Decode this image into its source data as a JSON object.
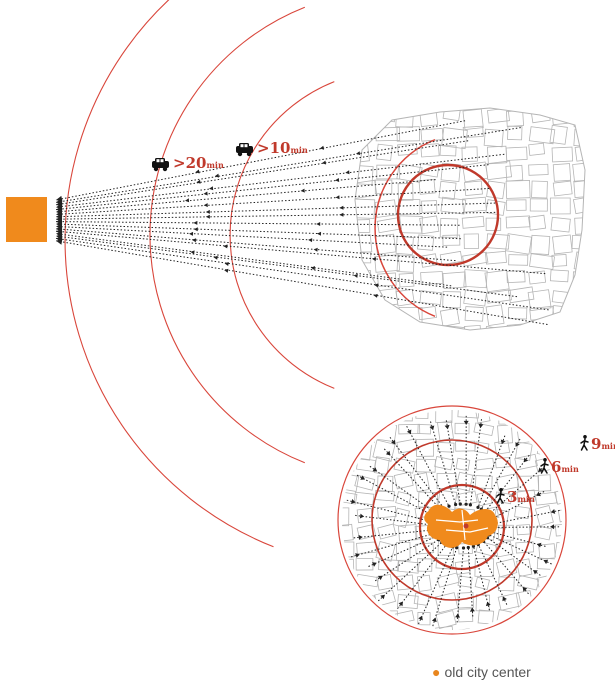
{
  "colors": {
    "orange": "#f08a1c",
    "red": "#c0392b",
    "arc": "#d9463b",
    "map_line": "#b5b5b5",
    "arrow": "#222222"
  },
  "top_diagram": {
    "labels": [
      {
        "icon": "car-icon",
        "value": ">20",
        "unit": "min"
      },
      {
        "icon": "car-icon",
        "value": ">10",
        "unit": "min"
      }
    ]
  },
  "bottom_diagram": {
    "labels": [
      {
        "icon": "pedestrian-icon",
        "value": "9",
        "unit": "min"
      },
      {
        "icon": "pedestrian-icon",
        "value": "6",
        "unit": "min"
      },
      {
        "icon": "pedestrian-icon",
        "value": "3",
        "unit": "min"
      }
    ]
  },
  "legend": {
    "items": [
      {
        "label": "old city center",
        "color": "#f08a1c"
      }
    ]
  }
}
